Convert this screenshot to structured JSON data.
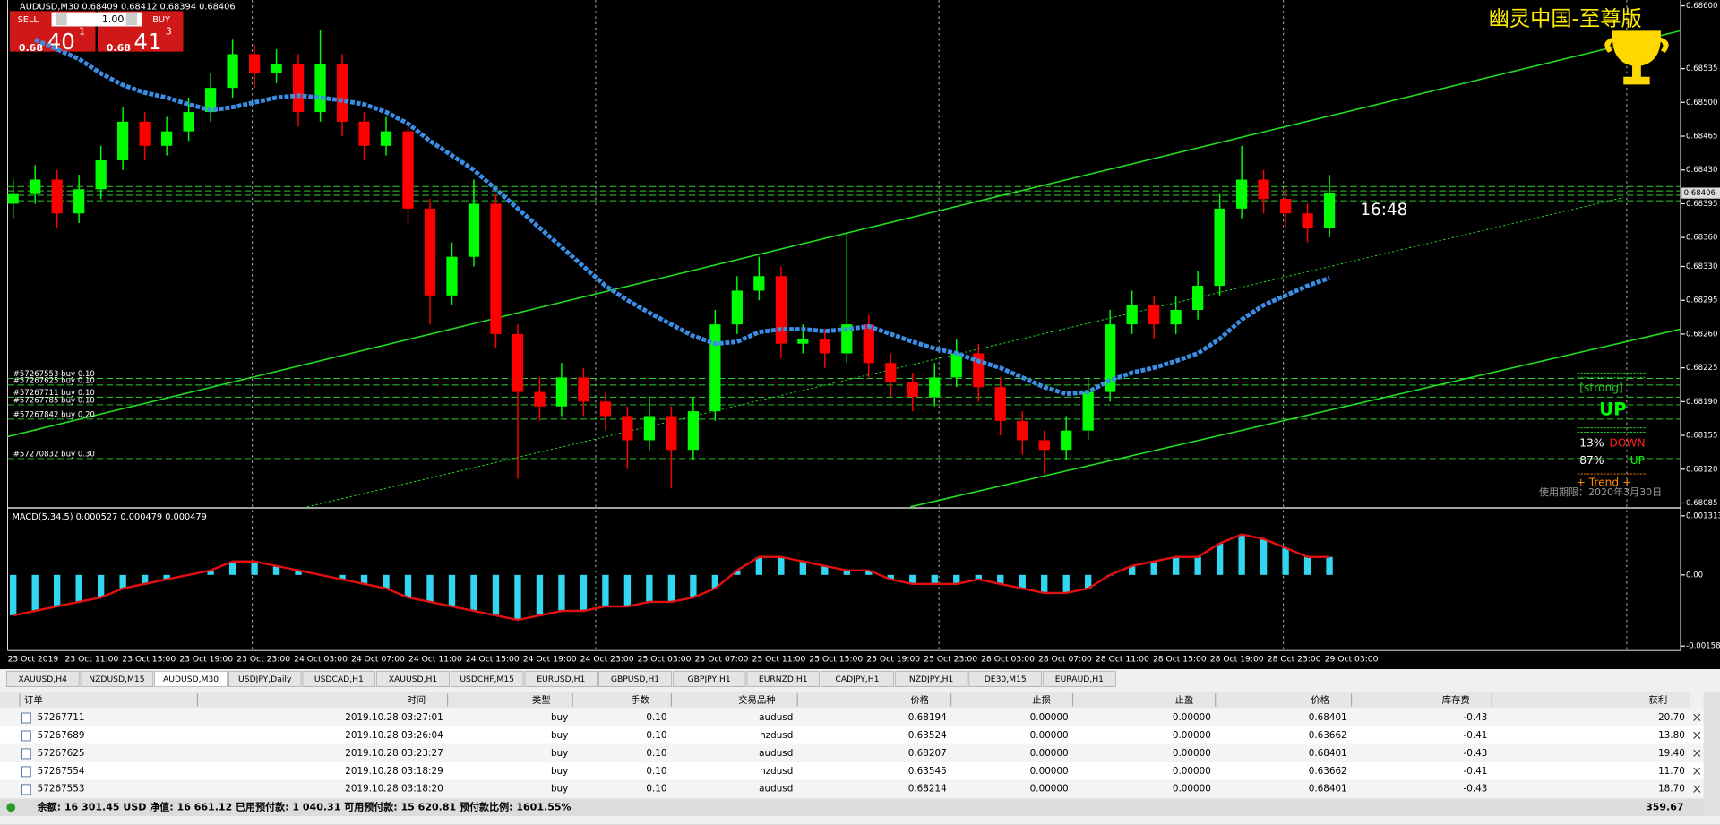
{
  "header": "AUDUSD,M30  0.68409 0.68412 0.68394 0.68406",
  "trade_panel": {
    "sell": "SELL",
    "buy": "BUY",
    "lots": "1.00",
    "bid_prefix": "0.68",
    "bid_big": "40",
    "bid_small": "1",
    "ask_prefix": "0.68",
    "ask_big": "41",
    "ask_small": "3"
  },
  "brand": "幽灵中国-至尊版",
  "timer": "16:48",
  "signal_panel": {
    "strength": "[strong]",
    "direction": "UP",
    "down_pct": "13%",
    "down_label": "DOWN",
    "up_pct": "87%",
    "up_label": "UP",
    "trend": "+  Trend  +",
    "expiry": "使用期限：2020年3月30日"
  },
  "orders": [
    "#57267553 buy 0.10",
    "#57267625 buy 0.10",
    "#57267711 buy 0.10",
    "#57267785 buy 0.10",
    "#57267842 buy 0.20",
    "#57270832 buy 0.30"
  ],
  "macd_label": "MACD(5,34,5) 0.000527 0.000479 0.000479",
  "chart_data": [
    {
      "type": "candlestick",
      "up_color": "#00ff00",
      "down_color": "#ff0000",
      "ma_color": "#3a8ee6",
      "ylim": [
        0.68081,
        0.68606
      ],
      "yticks": [
        {
          "value": 0.686,
          "label": "0.68600"
        },
        0.68535,
        {
          "value": 0.685,
          "label": "0.68500"
        },
        0.68465,
        {
          "value": 0.6843,
          "label": "0.68430"
        },
        0.68395,
        {
          "value": 0.6836,
          "label": "0.68360"
        },
        {
          "value": 0.6833,
          "label": "0.68330"
        },
        0.68295,
        {
          "value": 0.6826,
          "label": "0.68260"
        },
        0.68225,
        {
          "value": 0.6819,
          "label": "0.68190"
        },
        0.68155,
        {
          "value": 0.6812,
          "label": "0.68120"
        },
        0.68085
      ],
      "current_price": {
        "value": 0.68406,
        "label": "0.68406"
      },
      "times": [
        "23 Oct 2019",
        "23 Oct 11:00",
        "23 Oct 15:00",
        "23 Oct 19:00",
        "23 Oct 23:00",
        "24 Oct 03:00",
        "24 Oct 07:00",
        "24 Oct 11:00",
        "24 Oct 15:00",
        "24 Oct 19:00",
        "24 Oct 23:00",
        "25 Oct 03:00",
        "25 Oct 07:00",
        "25 Oct 11:00",
        "25 Oct 15:00",
        "25 Oct 19:00",
        "25 Oct 23:00",
        "28 Oct 03:00",
        "28 Oct 07:00",
        "28 Oct 11:00",
        "28 Oct 15:00",
        "28 Oct 19:00",
        "28 Oct 23:00",
        "29 Oct 03:00"
      ],
      "candles": [
        [
          0.68395,
          0.6842,
          0.6838,
          0.68405
        ],
        [
          0.68405,
          0.68435,
          0.68395,
          0.6842
        ],
        [
          0.6842,
          0.6843,
          0.6837,
          0.68385
        ],
        [
          0.68385,
          0.68425,
          0.68375,
          0.6841
        ],
        [
          0.6841,
          0.68455,
          0.684,
          0.6844
        ],
        [
          0.6844,
          0.68495,
          0.6843,
          0.6848
        ],
        [
          0.6848,
          0.6849,
          0.6844,
          0.68455
        ],
        [
          0.68455,
          0.68485,
          0.68445,
          0.6847
        ],
        [
          0.6847,
          0.68505,
          0.6846,
          0.6849
        ],
        [
          0.6849,
          0.6853,
          0.6848,
          0.68515
        ],
        [
          0.68515,
          0.68565,
          0.68505,
          0.6855
        ],
        [
          0.6855,
          0.6856,
          0.68515,
          0.6853
        ],
        [
          0.6853,
          0.68555,
          0.6852,
          0.6854
        ],
        [
          0.6854,
          0.6855,
          0.68475,
          0.6849
        ],
        [
          0.6849,
          0.68575,
          0.6848,
          0.6854
        ],
        [
          0.6854,
          0.6855,
          0.68465,
          0.6848
        ],
        [
          0.6848,
          0.6849,
          0.6844,
          0.68455
        ],
        [
          0.68455,
          0.68485,
          0.68445,
          0.6847
        ],
        [
          0.6847,
          0.6848,
          0.68375,
          0.6839
        ],
        [
          0.6839,
          0.684,
          0.6827,
          0.683
        ],
        [
          0.683,
          0.68355,
          0.6829,
          0.6834
        ],
        [
          0.6834,
          0.6842,
          0.6833,
          0.68395
        ],
        [
          0.68395,
          0.68405,
          0.68245,
          0.6826
        ],
        [
          0.6826,
          0.6827,
          0.6811,
          0.682
        ],
        [
          0.682,
          0.68215,
          0.6817,
          0.68185
        ],
        [
          0.68185,
          0.6823,
          0.68175,
          0.68215
        ],
        [
          0.68215,
          0.68225,
          0.68175,
          0.6819
        ],
        [
          0.6819,
          0.682,
          0.6816,
          0.68175
        ],
        [
          0.68175,
          0.68185,
          0.6812,
          0.6815
        ],
        [
          0.6815,
          0.68195,
          0.6814,
          0.68175
        ],
        [
          0.68175,
          0.68185,
          0.681,
          0.6814
        ],
        [
          0.6814,
          0.68195,
          0.6813,
          0.6818
        ],
        [
          0.6818,
          0.68285,
          0.6817,
          0.6827
        ],
        [
          0.6827,
          0.6832,
          0.6826,
          0.68305
        ],
        [
          0.68305,
          0.6834,
          0.68295,
          0.6832
        ],
        [
          0.6832,
          0.6833,
          0.68235,
          0.6825
        ],
        [
          0.6825,
          0.6827,
          0.6824,
          0.68255
        ],
        [
          0.68255,
          0.68265,
          0.68225,
          0.6824
        ],
        [
          0.6824,
          0.68365,
          0.6823,
          0.6827
        ],
        [
          0.6827,
          0.6828,
          0.68215,
          0.6823
        ],
        [
          0.6823,
          0.6824,
          0.68195,
          0.6821
        ],
        [
          0.6821,
          0.6822,
          0.6818,
          0.68195
        ],
        [
          0.68195,
          0.6823,
          0.68185,
          0.68215
        ],
        [
          0.68215,
          0.68255,
          0.68205,
          0.6824
        ],
        [
          0.6824,
          0.6825,
          0.6819,
          0.68205
        ],
        [
          0.68205,
          0.68215,
          0.68155,
          0.6817
        ],
        [
          0.6817,
          0.6818,
          0.68135,
          0.6815
        ],
        [
          0.6815,
          0.6816,
          0.68115,
          0.6814
        ],
        [
          0.6814,
          0.68175,
          0.6813,
          0.6816
        ],
        [
          0.6816,
          0.68215,
          0.6815,
          0.682
        ],
        [
          0.682,
          0.68285,
          0.6819,
          0.6827
        ],
        [
          0.6827,
          0.68305,
          0.6826,
          0.6829
        ],
        [
          0.6829,
          0.683,
          0.68255,
          0.6827
        ],
        [
          0.6827,
          0.683,
          0.6826,
          0.68285
        ],
        [
          0.68285,
          0.68325,
          0.68275,
          0.6831
        ],
        [
          0.6831,
          0.68405,
          0.683,
          0.6839
        ],
        [
          0.6839,
          0.68455,
          0.6838,
          0.6842
        ],
        [
          0.6842,
          0.6843,
          0.68385,
          0.684
        ],
        [
          0.684,
          0.6841,
          0.6837,
          0.68385
        ],
        [
          0.68385,
          0.68395,
          0.68355,
          0.6837
        ],
        [
          0.6837,
          0.68425,
          0.6836,
          0.68406
        ]
      ],
      "ma": [
        null,
        0.68565,
        0.68555,
        0.68545,
        0.6853,
        0.68518,
        0.6851,
        0.68505,
        0.68498,
        0.68492,
        0.68495,
        0.685,
        0.68505,
        0.68507,
        0.68505,
        0.68502,
        0.68498,
        0.6849,
        0.68478,
        0.6846,
        0.68445,
        0.6843,
        0.6841,
        0.6839,
        0.6837,
        0.6835,
        0.6833,
        0.6831,
        0.68295,
        0.68282,
        0.6827,
        0.68258,
        0.6825,
        0.68252,
        0.68262,
        0.68265,
        0.68265,
        0.68263,
        0.68265,
        0.68268,
        0.6826,
        0.68252,
        0.68245,
        0.6824,
        0.68232,
        0.68225,
        0.68215,
        0.68205,
        0.68198,
        0.682,
        0.68212,
        0.6822,
        0.68225,
        0.68232,
        0.6824,
        0.68255,
        0.68275,
        0.6829,
        0.683,
        0.6831,
        0.68318
      ]
    },
    {
      "type": "bar",
      "color": "#33d6f0",
      "line_color": "#e01010",
      "ylim": [
        -0.00168,
        0.00144
      ],
      "yticks": [
        0.001313,
        {
          "value": 0,
          "label": "0.00"
        },
        -0.00158
      ],
      "values": [
        -0.0009,
        -0.0008,
        -0.0007,
        -0.0006,
        -0.0005,
        -0.0003,
        -0.0002,
        -0.0001,
        0.0,
        0.0001,
        0.0003,
        0.0003,
        0.0002,
        0.0001,
        0.0,
        -0.0001,
        -0.0002,
        -0.0003,
        -0.0005,
        -0.0006,
        -0.0007,
        -0.0008,
        -0.0009,
        -0.001,
        -0.0009,
        -0.0008,
        -0.0008,
        -0.0007,
        -0.0007,
        -0.0006,
        -0.0006,
        -0.0005,
        -0.0003,
        0.0001,
        0.0004,
        0.0004,
        0.0003,
        0.0002,
        0.0001,
        0.0001,
        -0.0001,
        -0.0002,
        -0.0002,
        -0.0002,
        -0.0001,
        -0.0002,
        -0.0003,
        -0.0004,
        -0.0004,
        -0.0003,
        0.0,
        0.0002,
        0.0003,
        0.0004,
        0.0004,
        0.0007,
        0.0009,
        0.0008,
        0.0006,
        0.0004,
        0.0004
      ]
    }
  ],
  "tabs": [
    "XAUUSD,H4",
    "NZDUSD,M15",
    "AUDUSD,M30",
    "USDJPY,Daily",
    "USDCAD,H1",
    "XAUUSD,H1",
    "USDCHF,M15",
    "EURUSD,H1",
    "GBPUSD,H1",
    "GBPJPY,H1",
    "EURNZD,H1",
    "CADJPY,H1",
    "NZDJPY,H1",
    "DE30,M15",
    "EURAUD,H1"
  ],
  "table": {
    "headers": [
      "订单",
      "时间",
      "类型",
      "手数",
      "交易品种",
      "价格",
      "止损",
      "止盈",
      "价格",
      "库存费",
      "获利"
    ],
    "rows": [
      [
        "57267711",
        "2019.10.28 03:27:01",
        "buy",
        "0.10",
        "audusd",
        "0.68194",
        "0.00000",
        "0.00000",
        "0.68401",
        "-0.43",
        "20.70"
      ],
      [
        "57267689",
        "2019.10.28 03:26:04",
        "buy",
        "0.10",
        "nzdusd",
        "0.63524",
        "0.00000",
        "0.00000",
        "0.63662",
        "-0.41",
        "13.80"
      ],
      [
        "57267625",
        "2019.10.28 03:23:27",
        "buy",
        "0.10",
        "audusd",
        "0.68207",
        "0.00000",
        "0.00000",
        "0.68401",
        "-0.43",
        "19.40"
      ],
      [
        "57267554",
        "2019.10.28 03:18:29",
        "buy",
        "0.10",
        "nzdusd",
        "0.63545",
        "0.00000",
        "0.00000",
        "0.63662",
        "-0.41",
        "11.70"
      ],
      [
        "57267553",
        "2019.10.28 03:18:20",
        "buy",
        "0.10",
        "audusd",
        "0.68214",
        "0.00000",
        "0.00000",
        "0.68401",
        "-0.43",
        "18.70"
      ]
    ]
  },
  "footer": {
    "summary": "余额: 16 301.45 USD  净值: 16 661.12  已用预付款: 1 040.31  可用预付款: 15 620.81  预付款比例: 1601.55%",
    "profit": "359.67"
  }
}
